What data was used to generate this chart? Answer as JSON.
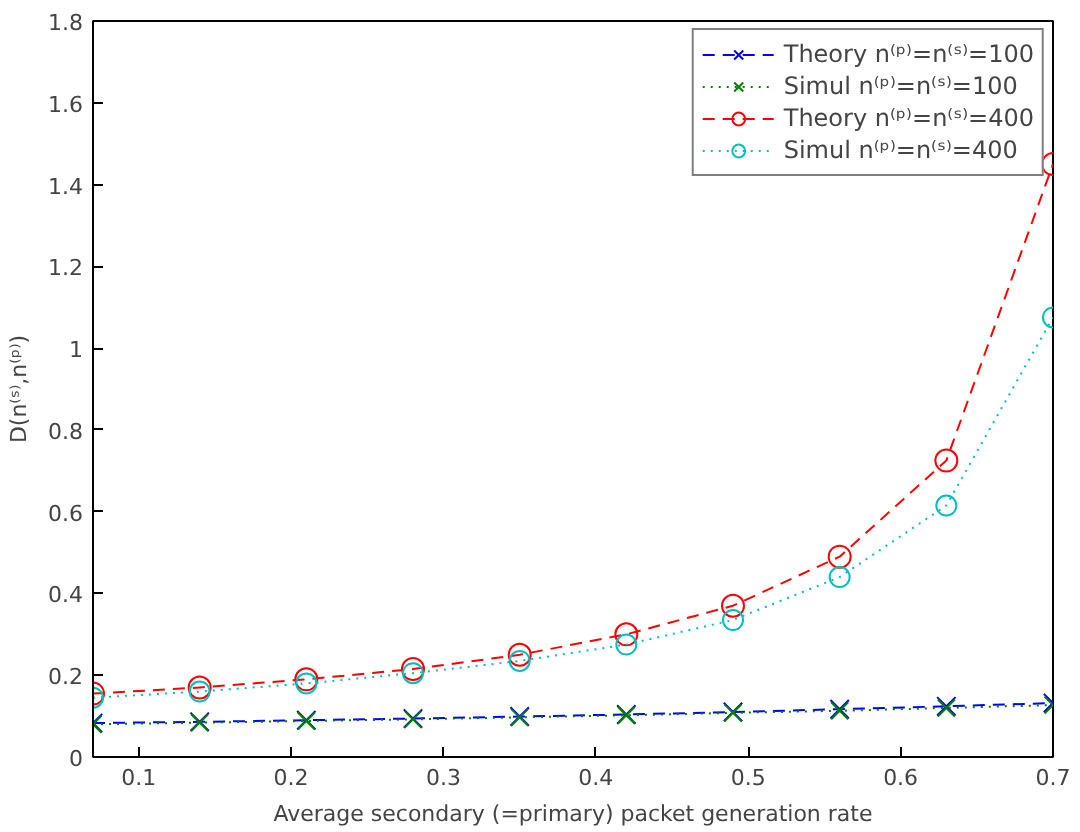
{
  "chart_data": {
    "type": "line",
    "xlabel": "Average secondary (=primary) packet generation rate",
    "ylabel": "D(n⁽ˢ⁾,n⁽ᵖ⁾)",
    "x": [
      0.07,
      0.14,
      0.21,
      0.28,
      0.35,
      0.42,
      0.49,
      0.56,
      0.63,
      0.7
    ],
    "xlim": [
      0.07,
      0.7
    ],
    "xticks": [
      0.1,
      0.2,
      0.3,
      0.4,
      0.5,
      0.6,
      0.7
    ],
    "ylim": [
      0,
      1.8
    ],
    "yticks": [
      0,
      {
        "value": 0.2,
        "label": "0.2"
      },
      {
        "value": 0.4,
        "label": "0.4"
      },
      {
        "value": 0.6,
        "label": "0.6"
      },
      {
        "value": 0.8,
        "label": "0.8"
      },
      1,
      {
        "value": 1.2,
        "label": "1.2"
      },
      {
        "value": 1.4,
        "label": "1.4"
      },
      {
        "value": 1.6,
        "label": "1.6"
      },
      {
        "value": 1.8,
        "label": "1.8"
      }
    ],
    "grid": false,
    "legend": "top right",
    "series": [
      {
        "name": "Theory n⁽ᵖ⁾=n⁽ˢ⁾=100",
        "color": "#0000ff",
        "marker": "cross",
        "line_style": "dashed",
        "values": [
          0.083,
          0.086,
          0.09,
          0.094,
          0.099,
          0.104,
          0.11,
          0.117,
          0.124,
          0.132
        ]
      },
      {
        "name": "Simul n⁽ᵖ⁾=n⁽ˢ⁾=100",
        "color": "#008000",
        "marker": "cross",
        "line_style": "dotted",
        "values": [
          0.08,
          0.084,
          0.088,
          0.092,
          0.097,
          0.102,
          0.108,
          0.113,
          0.12,
          0.127
        ]
      },
      {
        "name": "Theory n⁽ᵖ⁾=n⁽ˢ⁾=400",
        "color": "#ff0000",
        "marker": "circle",
        "line_style": "dashed",
        "values": [
          0.155,
          0.17,
          0.19,
          0.215,
          0.25,
          0.3,
          0.37,
          0.49,
          0.725,
          1.45
        ]
      },
      {
        "name": "Simul n⁽ᵖ⁾=n⁽ˢ⁾=400",
        "color": "#00bfbf",
        "marker": "circle",
        "line_style": "dotted",
        "values": [
          0.145,
          0.16,
          0.18,
          0.205,
          0.235,
          0.275,
          0.335,
          0.44,
          0.615,
          1.075
        ]
      }
    ]
  }
}
